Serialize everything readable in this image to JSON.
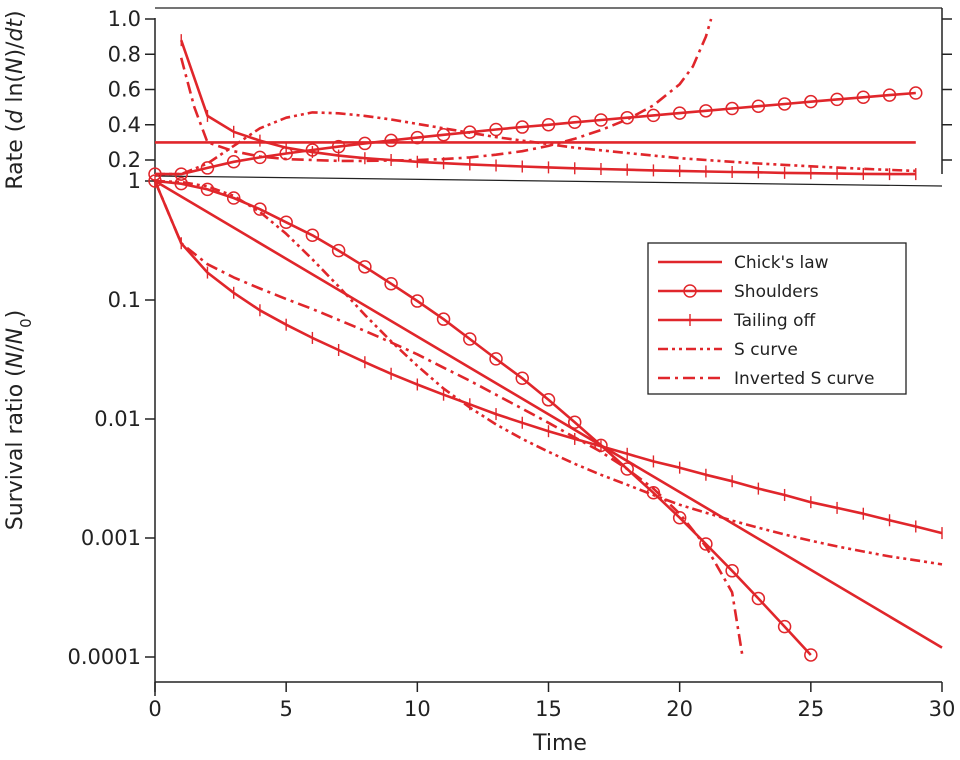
{
  "chart_data": [
    {
      "type": "line",
      "panel": "rate",
      "xlabel": "",
      "ylabel_prefix": "Rate (",
      "ylabel_d": "d",
      "ylabel_mid": " ln(",
      "ylabel_N": "N",
      "ylabel_slash": ")/",
      "ylabel_dt": "dt",
      "ylabel_close": ")",
      "xlim": [
        0,
        30
      ],
      "ylim": [
        0.12,
        1.0
      ],
      "yticks": [
        0.2,
        0.4,
        0.6,
        0.8,
        1.0
      ],
      "ytick_labels": [
        "0.2",
        "0.4",
        "0.6",
        "0.8",
        "1.0"
      ],
      "grid": false,
      "series": [
        {
          "name": "Chick's law",
          "style": "solid",
          "x": [
            0,
            29
          ],
          "y": [
            0.3,
            0.3
          ]
        },
        {
          "name": "Shoulders",
          "style": "circle",
          "x": [
            0,
            1,
            2,
            3,
            4,
            5,
            6,
            7,
            8,
            9,
            10,
            11,
            12,
            13,
            14,
            15,
            16,
            17,
            18,
            19,
            20,
            21,
            22,
            23,
            24,
            25,
            26,
            27,
            28,
            29
          ],
          "y": [
            0.0,
            0.11,
            0.155,
            0.19,
            0.215,
            0.237,
            0.257,
            0.276,
            0.294,
            0.311,
            0.327,
            0.343,
            0.358,
            0.373,
            0.387,
            0.4,
            0.414,
            0.427,
            0.44,
            0.453,
            0.466,
            0.479,
            0.492,
            0.505,
            0.518,
            0.531,
            0.544,
            0.556,
            0.568,
            0.58
          ]
        },
        {
          "name": "Tailing off",
          "style": "plus",
          "x": [
            1,
            2,
            3,
            4,
            5,
            6,
            7,
            8,
            9,
            10,
            11,
            12,
            13,
            14,
            15,
            16,
            17,
            18,
            19,
            20,
            21,
            22,
            23,
            24,
            25,
            26,
            27,
            28,
            29
          ],
          "y": [
            0.88,
            0.45,
            0.36,
            0.31,
            0.27,
            0.245,
            0.225,
            0.21,
            0.2,
            0.19,
            0.182,
            0.175,
            0.169,
            0.163,
            0.158,
            0.153,
            0.149,
            0.145,
            0.141,
            0.138,
            0.135,
            0.132,
            0.13,
            0.127,
            0.125,
            0.123,
            0.121,
            0.119,
            0.117
          ]
        },
        {
          "name": "S curve",
          "style": "dashdotdot",
          "x": [
            0,
            1,
            2,
            3,
            4,
            5,
            6,
            7,
            8,
            9,
            10,
            11,
            12,
            13,
            14,
            15,
            16,
            17,
            18,
            19,
            20,
            21,
            22,
            23,
            24,
            25,
            26,
            27,
            28,
            29
          ],
          "y": [
            0.05,
            0.1,
            0.18,
            0.28,
            0.38,
            0.44,
            0.47,
            0.465,
            0.45,
            0.43,
            0.405,
            0.38,
            0.355,
            0.33,
            0.31,
            0.29,
            0.27,
            0.255,
            0.24,
            0.225,
            0.21,
            0.2,
            0.19,
            0.18,
            0.172,
            0.164,
            0.157,
            0.15,
            0.144,
            0.138
          ]
        },
        {
          "name": "Inverted S curve",
          "style": "dashdot",
          "x": [
            1,
            1.5,
            2,
            3,
            4,
            5,
            6,
            7,
            8,
            9,
            10,
            11,
            12,
            13,
            14,
            15,
            16,
            17,
            18,
            19,
            20,
            20.5,
            21,
            21.2
          ],
          "y": [
            0.78,
            0.5,
            0.3,
            0.25,
            0.22,
            0.205,
            0.2,
            0.195,
            0.195,
            0.197,
            0.2,
            0.205,
            0.215,
            0.23,
            0.25,
            0.28,
            0.32,
            0.37,
            0.43,
            0.51,
            0.63,
            0.73,
            0.9,
            1.0
          ]
        }
      ]
    },
    {
      "type": "line",
      "panel": "survival",
      "xlabel": "Time",
      "ylabel_prefix": "Survival ratio (",
      "ylabel_N": "N",
      "ylabel_slash": "/",
      "ylabel_N0": "N",
      "ylabel_sub": "0",
      "ylabel_close": ")",
      "yscale": "log",
      "xlim": [
        0,
        30
      ],
      "ylim": [
        0.0001,
        1
      ],
      "xticks": [
        0,
        5,
        10,
        15,
        20,
        25,
        30
      ],
      "xtick_labels": [
        "0",
        "5",
        "10",
        "15",
        "20",
        "25",
        "30"
      ],
      "yticks": [
        1,
        0.1,
        0.01,
        0.001,
        0.0001
      ],
      "ytick_labels": [
        "1",
        "0.1",
        "0.01",
        "0.001",
        "0.0001"
      ],
      "grid": false,
      "legend_position": "right",
      "series": [
        {
          "name": "Chick's law",
          "style": "solid",
          "x": [
            0,
            30
          ],
          "y": [
            1,
            0.00012
          ]
        },
        {
          "name": "Shoulders",
          "style": "circle",
          "x": [
            0,
            1,
            2,
            3,
            4,
            5,
            6,
            7,
            8,
            9,
            10,
            11,
            12,
            13,
            14,
            15,
            16,
            17,
            18,
            19,
            20,
            21,
            22,
            23,
            24,
            25
          ],
          "y": [
            1,
            0.95,
            0.85,
            0.72,
            0.58,
            0.45,
            0.35,
            0.26,
            0.19,
            0.137,
            0.098,
            0.069,
            0.047,
            0.032,
            0.022,
            0.0145,
            0.0094,
            0.006,
            0.0038,
            0.0024,
            0.00148,
            0.00089,
            0.00053,
            0.00031,
            0.00018,
            0.000104
          ]
        },
        {
          "name": "Tailing off",
          "style": "plus",
          "x": [
            0,
            1,
            2,
            3,
            4,
            5,
            6,
            7,
            8,
            9,
            10,
            11,
            12,
            13,
            14,
            15,
            16,
            17,
            18,
            19,
            20,
            21,
            22,
            23,
            24,
            25,
            26,
            27,
            28,
            29,
            30
          ],
          "y": [
            1,
            0.3,
            0.17,
            0.115,
            0.082,
            0.062,
            0.048,
            0.038,
            0.03,
            0.024,
            0.0195,
            0.016,
            0.0133,
            0.011,
            0.0093,
            0.0079,
            0.0068,
            0.0059,
            0.0051,
            0.0044,
            0.0039,
            0.0034,
            0.003,
            0.0026,
            0.0023,
            0.002,
            0.00179,
            0.0016,
            0.00141,
            0.00125,
            0.0011
          ]
        },
        {
          "name": "S curve",
          "style": "dashdotdot",
          "x": [
            0,
            1,
            2,
            3,
            4,
            5,
            6,
            7,
            8,
            9,
            10,
            11,
            12,
            13,
            14,
            15,
            16,
            17,
            18,
            19,
            20,
            21,
            22,
            23,
            24,
            25,
            26,
            27,
            28,
            29,
            30
          ],
          "y": [
            1,
            0.98,
            0.9,
            0.75,
            0.55,
            0.36,
            0.22,
            0.13,
            0.075,
            0.045,
            0.028,
            0.018,
            0.0125,
            0.009,
            0.0068,
            0.0053,
            0.0042,
            0.0034,
            0.0028,
            0.0023,
            0.0019,
            0.00163,
            0.0014,
            0.00122,
            0.00107,
            0.00095,
            0.00085,
            0.00077,
            0.0007,
            0.00065,
            0.0006
          ]
        },
        {
          "name": "Inverted S curve",
          "style": "dashdot",
          "x": [
            0,
            1,
            2,
            3,
            4,
            5,
            6,
            7,
            8,
            9,
            10,
            11,
            12,
            13,
            14,
            15,
            16,
            17,
            18,
            19,
            20,
            21,
            22,
            22.4
          ],
          "y": [
            1,
            0.3,
            0.2,
            0.155,
            0.125,
            0.102,
            0.084,
            0.068,
            0.055,
            0.044,
            0.035,
            0.027,
            0.021,
            0.016,
            0.0122,
            0.0093,
            0.007,
            0.0053,
            0.0038,
            0.0026,
            0.0016,
            0.00085,
            0.00035,
            0.0001
          ]
        }
      ]
    }
  ],
  "colors": {
    "series": "#e0262b",
    "axis": "#222222"
  },
  "legend": {
    "items": [
      {
        "label": "Chick's law",
        "style": "solid"
      },
      {
        "label": "Shoulders",
        "style": "circle"
      },
      {
        "label": "Tailing off",
        "style": "plus"
      },
      {
        "label": "S curve",
        "style": "dashdotdot"
      },
      {
        "label": "Inverted S curve",
        "style": "dashdot"
      }
    ]
  }
}
